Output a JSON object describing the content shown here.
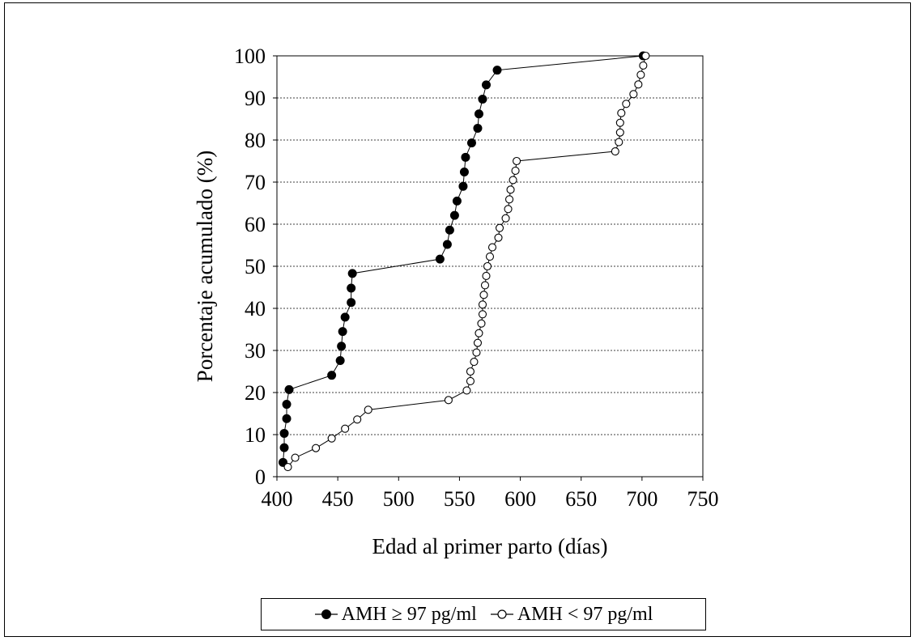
{
  "chart_data": {
    "type": "scatter",
    "title": "",
    "xlabel": "Edad al primer parto (días)",
    "ylabel": "Porcentaje acumulado (%)",
    "xlim": [
      400,
      750
    ],
    "ylim": [
      0,
      100
    ],
    "x_ticks": [
      400,
      450,
      500,
      550,
      600,
      650,
      700,
      750
    ],
    "y_ticks": [
      0,
      10,
      20,
      30,
      40,
      50,
      60,
      70,
      80,
      90,
      100
    ],
    "grid": "horizontal dashed",
    "legend_position": "bottom",
    "lines_connected": true,
    "series": [
      {
        "name": "AMH ≥ 97  pg/ml",
        "marker": "filled-circle",
        "color": "#000000",
        "points": [
          [
            405,
            3.4
          ],
          [
            406,
            6.9
          ],
          [
            406,
            10.3
          ],
          [
            408,
            13.8
          ],
          [
            408,
            17.2
          ],
          [
            410,
            20.7
          ],
          [
            445,
            24.1
          ],
          [
            452,
            27.6
          ],
          [
            453,
            31.0
          ],
          [
            454,
            34.5
          ],
          [
            456,
            37.9
          ],
          [
            461,
            41.4
          ],
          [
            461,
            44.8
          ],
          [
            462,
            48.3
          ],
          [
            534,
            51.7
          ],
          [
            540,
            55.2
          ],
          [
            542,
            58.6
          ],
          [
            546,
            62.1
          ],
          [
            548,
            65.5
          ],
          [
            553,
            69.0
          ],
          [
            554,
            72.4
          ],
          [
            555,
            75.9
          ],
          [
            560,
            79.3
          ],
          [
            565,
            82.8
          ],
          [
            566,
            86.2
          ],
          [
            569,
            89.7
          ],
          [
            572,
            93.1
          ],
          [
            581,
            96.6
          ],
          [
            701,
            100
          ]
        ]
      },
      {
        "name": "AMH < 97  pg/ml",
        "marker": "open-circle",
        "color": "#000000",
        "points": [
          [
            409,
            2.3
          ],
          [
            415,
            4.5
          ],
          [
            432,
            6.8
          ],
          [
            445,
            9.1
          ],
          [
            456,
            11.4
          ],
          [
            466,
            13.6
          ],
          [
            475,
            15.9
          ],
          [
            541,
            18.2
          ],
          [
            556,
            20.5
          ],
          [
            559,
            22.7
          ],
          [
            559,
            25.0
          ],
          [
            562,
            27.3
          ],
          [
            564,
            29.5
          ],
          [
            565,
            31.8
          ],
          [
            566,
            34.1
          ],
          [
            568,
            36.4
          ],
          [
            569,
            38.6
          ],
          [
            569,
            40.9
          ],
          [
            570,
            43.2
          ],
          [
            571,
            45.5
          ],
          [
            572,
            47.7
          ],
          [
            573,
            50.0
          ],
          [
            575,
            52.3
          ],
          [
            577,
            54.5
          ],
          [
            582,
            56.8
          ],
          [
            583,
            59.1
          ],
          [
            588,
            61.4
          ],
          [
            590,
            63.6
          ],
          [
            591,
            65.9
          ],
          [
            592,
            68.2
          ],
          [
            594,
            70.5
          ],
          [
            596,
            72.7
          ],
          [
            597,
            75.0
          ],
          [
            678,
            77.3
          ],
          [
            681,
            79.5
          ],
          [
            682,
            81.8
          ],
          [
            682,
            84.1
          ],
          [
            683,
            86.4
          ],
          [
            687,
            88.6
          ],
          [
            693,
            90.9
          ],
          [
            697,
            93.2
          ],
          [
            699,
            95.5
          ],
          [
            701,
            97.7
          ],
          [
            703,
            100
          ]
        ]
      }
    ]
  }
}
